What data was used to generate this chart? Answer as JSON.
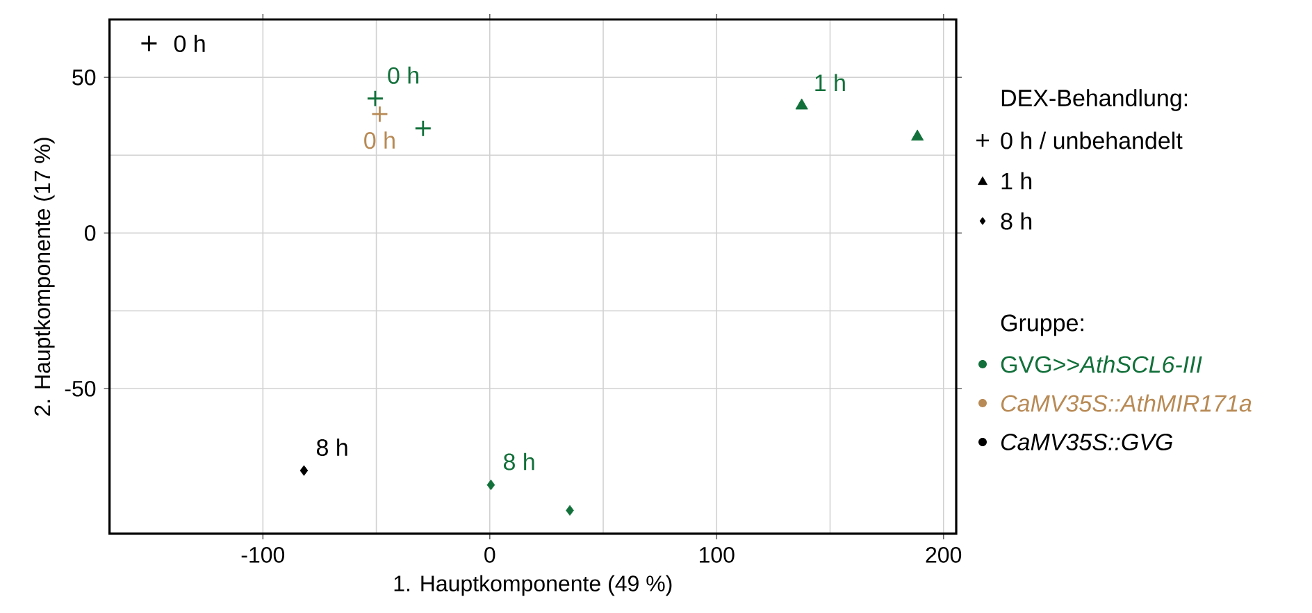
{
  "chart_data": {
    "type": "scatter",
    "xlabel": "1. Hauptkomponente (49 %)",
    "ylabel": "2. Hauptkomponente (17 %)",
    "xlim": [
      -167.6,
      205.6
    ],
    "ylim": [
      -96.6,
      68.6
    ],
    "xticks": [
      -100,
      0,
      100,
      200
    ],
    "yticks": [
      -50,
      0,
      50
    ],
    "grid": true,
    "legend": "right",
    "legend_title": "Gruppe:",
    "series": [
      {
        "name": "GVG>>*AthSCL6-III*",
        "color": "#12703a",
        "marker": "cross",
        "x": [
          -50.5,
          -29.4
        ],
        "values": [
          43.2,
          33.6
        ]
      },
      {
        "color": "#12703a",
        "marker": "triangle",
        "x": [
          137.5,
          188.5
        ],
        "values": [
          40.9,
          30.9
        ]
      },
      {
        "color": "#12703a",
        "marker": "diamond",
        "x": [
          0.5,
          35.3
        ],
        "values": [
          -80.9,
          -89.1
        ]
      },
      {
        "name": "*CaMV35S::AthMIR171a*",
        "color": "#b88a55",
        "marker": "cross",
        "x": [
          -48.5
        ],
        "values": [
          38.2
        ]
      },
      {
        "name": "*CaMV35S::GVG*",
        "color": "#000000",
        "marker": "cross",
        "x": [
          -150.2
        ],
        "values": [
          60.9
        ]
      },
      {
        "color": "#000000",
        "marker": "diamond",
        "x": [
          -81.9
        ],
        "values": [
          -76.3
        ]
      }
    ],
    "annotations": [
      "DEX-Behandlung:",
      "0 h / unbehandelt",
      "1 h",
      "8 h",
      {
        "text": "0 h",
        "x": -150.2,
        "y": 60.9
      },
      {
        "text": "0 h",
        "x": -50.5,
        "y": 43.2
      },
      {
        "text": "0 h",
        "x": -48.5,
        "y": 38.2
      },
      {
        "text": "1 h",
        "x": 137.5,
        "y": 40.9
      },
      {
        "text": "8 h",
        "x": -81.9,
        "y": -76.3
      },
      {
        "text": "8 h",
        "x": 0.5,
        "y": -80.9
      }
    ]
  }
}
